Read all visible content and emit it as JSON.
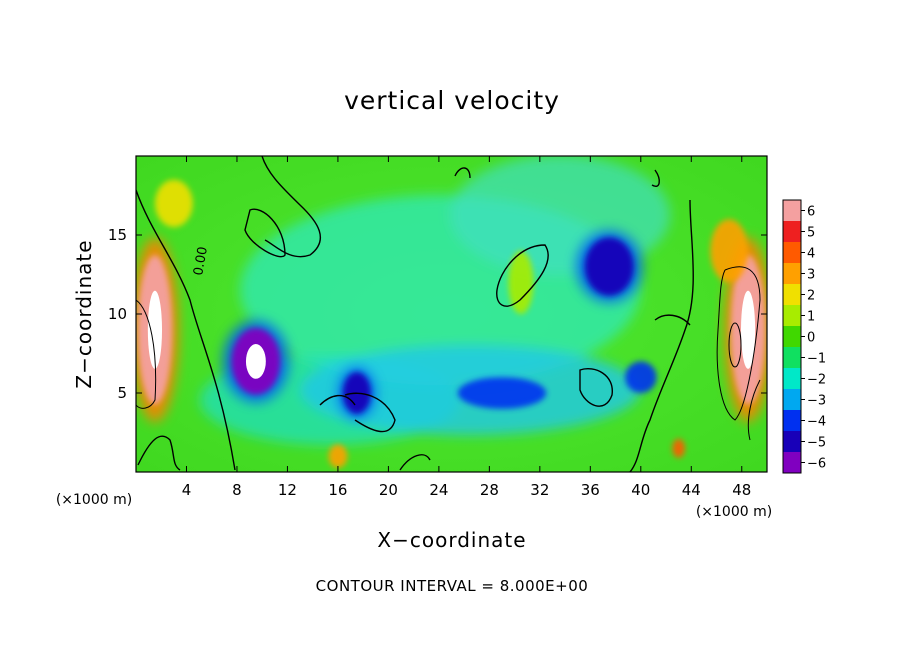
{
  "title": "vertical velocity",
  "footer_note": "CONTOUR INTERVAL = 8.000E+00",
  "chart_data": {
    "type": "heatmap",
    "title": "vertical velocity",
    "xlabel": "X−coordinate",
    "ylabel": "Z−coordinate",
    "x_units": "(×1000 m)",
    "y_units": "(×1000 m)",
    "xlim": [
      0,
      50
    ],
    "ylim": [
      0,
      20
    ],
    "x_ticks": [
      4,
      8,
      12,
      16,
      20,
      24,
      28,
      32,
      36,
      40,
      44,
      48
    ],
    "y_ticks": [
      5,
      10,
      15
    ],
    "contour_label": "0.00",
    "contour_interval": 8.0,
    "colorbar": {
      "levels": [
        6,
        5,
        4,
        3,
        2,
        1,
        0,
        -1,
        -2,
        -3,
        -4,
        -5,
        -6
      ],
      "labels": [
        "6",
        "5",
        "4",
        "3",
        "2",
        "1",
        "0",
        "−1",
        "−2",
        "−3",
        "−4",
        "−5",
        "−6"
      ],
      "colors": [
        "#f4a0a0",
        "#ee2020",
        "#ff5a00",
        "#ffa000",
        "#f0e000",
        "#a8ec00",
        "#40d800",
        "#10e060",
        "#00e8c8",
        "#00a8f0",
        "#0030f0",
        "#1800b8",
        "#8000c0"
      ]
    },
    "features": [
      {
        "x": 1.5,
        "z": 9,
        "w": 2.5,
        "h": 9,
        "value": 6
      },
      {
        "x": 48.5,
        "z": 9,
        "w": 2.5,
        "h": 9,
        "value": 6
      },
      {
        "x": 3,
        "z": 17,
        "w": 3,
        "h": 3,
        "value": 2
      },
      {
        "x": 47,
        "z": 14,
        "w": 3,
        "h": 4,
        "value": 3
      },
      {
        "x": 9.5,
        "z": 7,
        "w": 3.5,
        "h": 4,
        "value": -6
      },
      {
        "x": 17.5,
        "z": 5,
        "w": 2,
        "h": 2.5,
        "value": -5
      },
      {
        "x": 37.5,
        "z": 13,
        "w": 3.5,
        "h": 3.5,
        "value": -5
      },
      {
        "x": 29,
        "z": 5,
        "w": 7,
        "h": 2,
        "value": -4
      },
      {
        "x": 40,
        "z": 6,
        "w": 2.5,
        "h": 2,
        "value": -4
      },
      {
        "x": 30.5,
        "z": 12,
        "w": 2,
        "h": 4,
        "value": 1
      },
      {
        "x": 16,
        "z": 1,
        "w": 1.5,
        "h": 1.5,
        "value": 3
      },
      {
        "x": 43,
        "z": 1.5,
        "w": 1,
        "h": 1.2,
        "value": 4
      }
    ]
  }
}
